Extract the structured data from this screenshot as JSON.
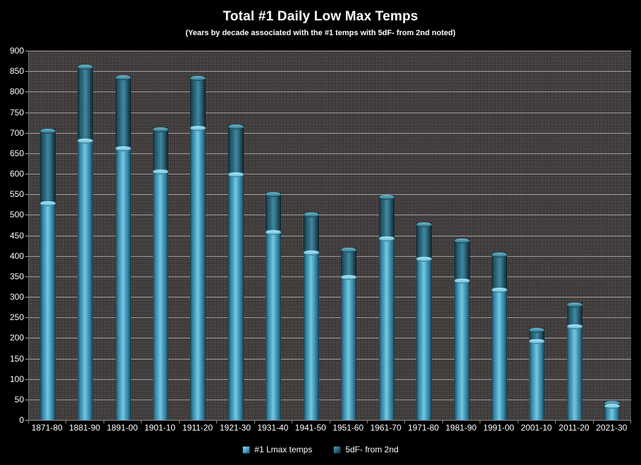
{
  "title": "Total #1 Daily Low Max Temps",
  "subtitle": "(Years by decade associated with the #1 temps with 5dF- from 2nd noted)",
  "colors": {
    "background": "#000000",
    "plot_background": "#3a3636",
    "gridline": "#b3abab",
    "text": "#ffffff",
    "series_light": "#4aa6c6",
    "series_light_cap": "#8fd4e8",
    "series_dark": "#2f7189",
    "series_dark_cap": "#4e98ad"
  },
  "legend": {
    "items": [
      {
        "label": "#1 Lmax temps",
        "swatch": "light"
      },
      {
        "label": "5dF- from 2nd",
        "swatch": "dark"
      }
    ]
  },
  "chart_data": {
    "type": "bar",
    "stacked": true,
    "title": "Total #1 Daily Low Max Temps",
    "subtitle": "(Years by decade associated with the #1 temps with 5dF- from 2nd noted)",
    "xlabel": "",
    "ylabel": "",
    "ylim": [
      0,
      900
    ],
    "ytick_step": 50,
    "yticks": [
      900,
      850,
      800,
      750,
      700,
      650,
      600,
      550,
      500,
      450,
      400,
      350,
      300,
      250,
      200,
      150,
      100,
      50,
      0
    ],
    "grid": true,
    "legend_position": "bottom",
    "categories": [
      "1871-80",
      "1881-90",
      "1891-00",
      "1901-10",
      "1911-20",
      "1921-30",
      "1931-40",
      "1941-50",
      "1951-60",
      "1961-70",
      "1971-80",
      "1981-90",
      "1991-00",
      "2001-10",
      "2011-20",
      "2021-30"
    ],
    "series": [
      {
        "name": "#1 Lmax temps",
        "values": [
          533,
          685,
          667,
          611,
          717,
          604,
          463,
          413,
          353,
          448,
          398,
          344,
          322,
          198,
          233,
          39
        ]
      },
      {
        "name": "5dF- from 2nd",
        "values": [
          177,
          180,
          173,
          102,
          121,
          116,
          93,
          92,
          67,
          101,
          83,
          99,
          86,
          27,
          54,
          8
        ]
      }
    ],
    "stack_totals": [
      710,
      865,
      840,
      713,
      838,
      720,
      556,
      505,
      420,
      549,
      481,
      443,
      408,
      225,
      287,
      47
    ]
  }
}
